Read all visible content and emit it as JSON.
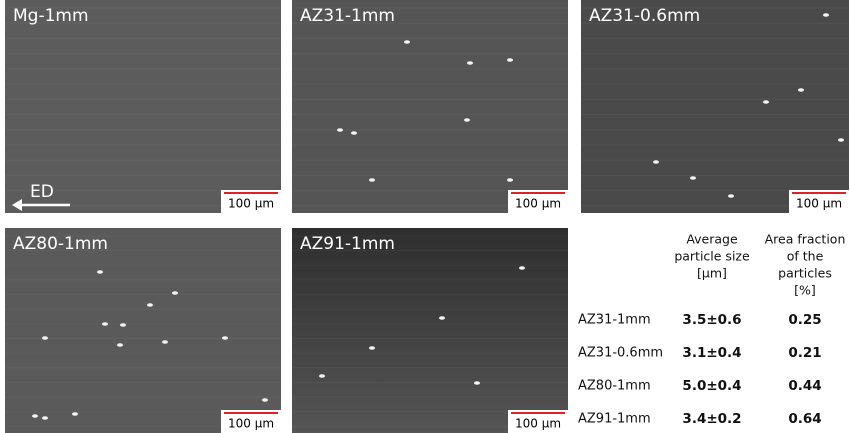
{
  "panels": [
    {
      "label": "Mg-1mm",
      "scale_bar": "100 µm"
    },
    {
      "label": "AZ31-1mm",
      "scale_bar": "100 µm"
    },
    {
      "label": "AZ31-0.6mm",
      "scale_bar": "100 µm"
    },
    {
      "label": "AZ80-1mm",
      "scale_bar": "100 µm"
    },
    {
      "label": "AZ91-1mm",
      "scale_bar": "100 µm"
    }
  ],
  "direction_label": "ED",
  "table": {
    "columns": [
      [
        "Average",
        "particle size",
        "[µm]"
      ],
      [
        "Area fraction",
        "of the",
        "particles",
        "[%]"
      ]
    ],
    "rows": [
      [
        "AZ31-1mm",
        "3.5±0.6",
        "0.25"
      ],
      [
        "AZ31-0.6mm",
        "3.1±0.4",
        "0.21"
      ],
      [
        "AZ80-1mm",
        "5.0±0.4",
        "0.44"
      ],
      [
        "AZ91-1mm",
        "3.4±0.2",
        "0.64"
      ]
    ]
  }
}
